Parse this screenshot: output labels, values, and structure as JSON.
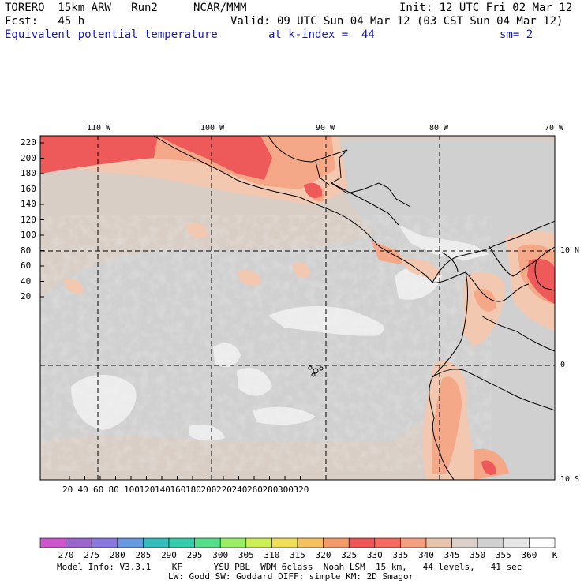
{
  "header": {
    "model": "TORERO  15km ARW   Run2",
    "org": "NCAR/MMM",
    "init": "Init: 12 UTC Fri 02 Mar 12",
    "fcst": "Fcst:   45 h",
    "valid": "Valid: 09 UTC Sun 04 Mar 12 (03 CST Sun 04 Mar 12)",
    "field": "Equivalent potential temperature",
    "level": "at k-index =  44",
    "smooth": "sm= 2"
  },
  "top_lon_labels": [
    "110 W",
    "100 W",
    "90 W",
    "80 W",
    "70 W"
  ],
  "right_lat_labels": [
    "10 N",
    "0",
    "10 S"
  ],
  "y_ticks": [
    "220",
    "200",
    "180",
    "160",
    "140",
    "120",
    "100",
    "80",
    "60",
    "40",
    "20"
  ],
  "x_ticks": [
    "20",
    "40",
    "60",
    "80",
    "100",
    "120",
    "140",
    "160",
    "180",
    "200",
    "220",
    "240",
    "260",
    "280",
    "300",
    "320"
  ],
  "colorbar": {
    "labels": [
      "270",
      "275",
      "280",
      "285",
      "290",
      "295",
      "300",
      "305",
      "310",
      "315",
      "320",
      "325",
      "330",
      "335",
      "340",
      "345",
      "350",
      "355",
      "360"
    ],
    "unit": "K",
    "colors": [
      "#cc55cc",
      "#9966cc",
      "#8877dd",
      "#6699dd",
      "#33bbbb",
      "#33ccaa",
      "#55dd88",
      "#99ee66",
      "#ccee55",
      "#eedd55",
      "#f4c060",
      "#f49a6a",
      "#ee5555",
      "#f46a60",
      "#f4a080",
      "#e8c4ac",
      "#dad0c8",
      "#d0d0d0",
      "#e6e6e6",
      "#ffffff"
    ]
  },
  "footer": {
    "line1": "Model Info: V3.3.1    KF      YSU PBL  WDM 6class  Noah LSM  15 km,   44 levels,   41 sec",
    "line2": "LW: Godd SW: Goddard DIFF: simple KM: 2D Smagor"
  },
  "map_colors": {
    "base": "#d8cec6",
    "light": "#d0d0d0",
    "white": "#ececec",
    "peach": "#f2c8b0",
    "salmon": "#f4a888",
    "red": "#ee5a5a"
  }
}
